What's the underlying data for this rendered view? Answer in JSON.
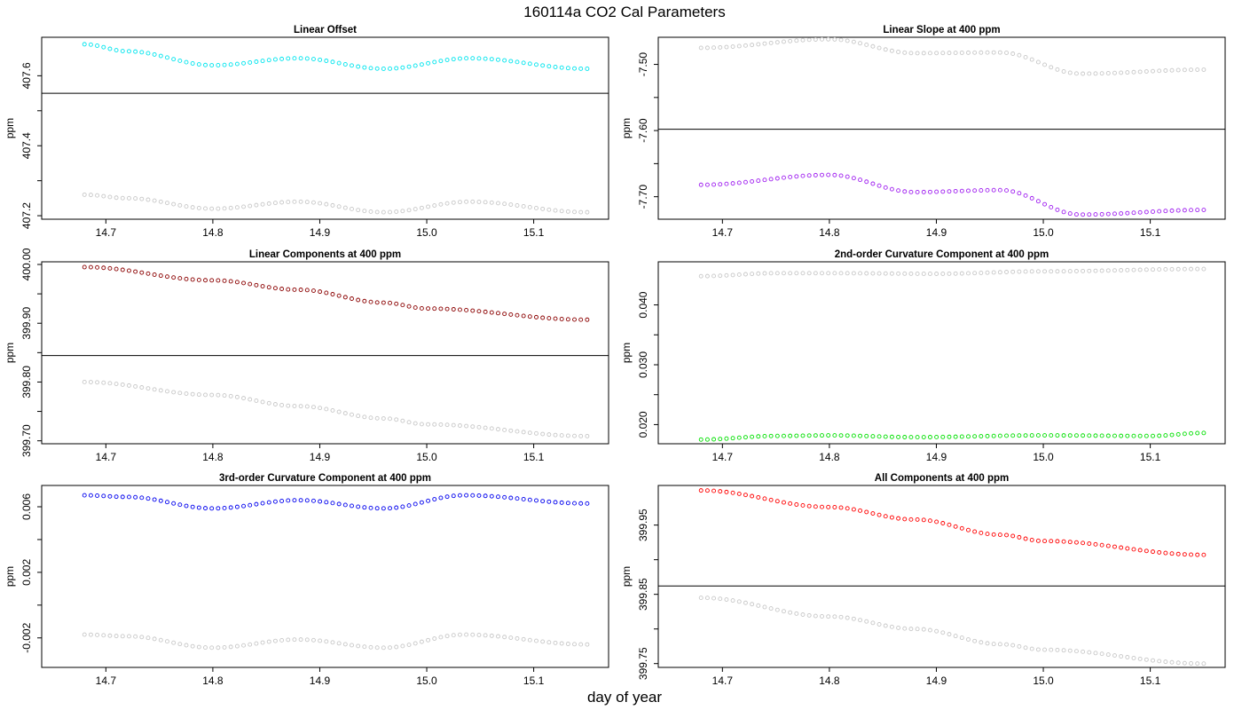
{
  "title": "160114a   CO2 Cal Parameters",
  "xlabel": "day of year",
  "colors": {
    "background": "#ffffff",
    "reference_series": "#c8c8c8",
    "axes": "#000000"
  },
  "chart_data": [
    {
      "type": "scatter",
      "title": "Linear Offset",
      "ylabel": "ppm",
      "xlim": [
        14.64,
        15.17
      ],
      "ylim": [
        407.19,
        407.71
      ],
      "xticks": [
        14.7,
        14.8,
        14.9,
        15.0,
        15.1
      ],
      "xtick_labels": [
        "14.7",
        "14.8",
        "14.9",
        "15.0",
        "15.1"
      ],
      "yticks": [
        407.2,
        407.3,
        407.4,
        407.5,
        407.6
      ],
      "ytick_labels": [
        "407.2",
        "",
        "407.4",
        "",
        "407.6"
      ],
      "hline": 407.55,
      "series": [
        {
          "color": "#00e5ee",
          "x_start": 14.68,
          "x_end": 15.15,
          "y_knots": [
            [
              14.68,
              407.69
            ],
            [
              14.72,
              407.67
            ],
            [
              14.8,
              407.63
            ],
            [
              14.88,
              407.65
            ],
            [
              14.96,
              407.62
            ],
            [
              15.04,
              407.65
            ],
            [
              15.15,
              407.62
            ]
          ]
        },
        {
          "color": "#c8c8c8",
          "x_start": 14.68,
          "x_end": 15.15,
          "y_knots": [
            [
              14.68,
              407.26
            ],
            [
              14.72,
              407.25
            ],
            [
              14.8,
              407.22
            ],
            [
              14.88,
              407.24
            ],
            [
              14.96,
              407.21
            ],
            [
              15.04,
              407.24
            ],
            [
              15.15,
              407.21
            ]
          ]
        }
      ]
    },
    {
      "type": "scatter",
      "title": "Linear Slope at 400 ppm",
      "ylabel": "ppm",
      "xlim": [
        14.64,
        15.17
      ],
      "ylim": [
        -7.734,
        -7.459
      ],
      "xticks": [
        14.7,
        14.8,
        14.9,
        15.0,
        15.1
      ],
      "xtick_labels": [
        "14.7",
        "14.8",
        "14.9",
        "15.0",
        "15.1"
      ],
      "yticks": [
        -7.7,
        -7.65,
        -7.6,
        -7.55,
        -7.5
      ],
      "ytick_labels": [
        "-7.70",
        "",
        "-7.60",
        "",
        "-7.50"
      ],
      "hline": -7.598,
      "series": [
        {
          "color": "#c8c8c8",
          "x_start": 14.68,
          "x_end": 15.15,
          "y_knots": [
            [
              14.68,
              -7.475
            ],
            [
              14.8,
              -7.462
            ],
            [
              14.88,
              -7.483
            ],
            [
              14.96,
              -7.482
            ],
            [
              15.035,
              -7.514
            ],
            [
              15.15,
              -7.508
            ]
          ]
        },
        {
          "color": "#a020f0",
          "x_start": 14.68,
          "x_end": 15.15,
          "y_knots": [
            [
              14.68,
              -7.682
            ],
            [
              14.8,
              -7.667
            ],
            [
              14.88,
              -7.693
            ],
            [
              14.96,
              -7.69
            ],
            [
              15.035,
              -7.727
            ],
            [
              15.15,
              -7.72
            ]
          ]
        }
      ]
    },
    {
      "type": "scatter",
      "title": "Linear Components at 400 ppm",
      "ylabel": "ppm",
      "xlim": [
        14.64,
        15.17
      ],
      "ylim": [
        399.695,
        400.0045
      ],
      "xticks": [
        14.7,
        14.8,
        14.9,
        15.0,
        15.1
      ],
      "xtick_labels": [
        "14.7",
        "14.8",
        "14.9",
        "15.0",
        "15.1"
      ],
      "yticks": [
        399.7,
        399.75,
        399.8,
        399.85,
        399.9,
        399.95,
        400.0
      ],
      "ytick_labels": [
        "399.70",
        "",
        "399.80",
        "",
        "399.90",
        "",
        "400.00"
      ],
      "hline": 399.845,
      "series": [
        {
          "color": "#8b0000",
          "x_start": 14.68,
          "x_end": 15.15,
          "y_knots": [
            [
              14.68,
              399.9955
            ],
            [
              14.8,
              399.973
            ],
            [
              14.88,
              399.957
            ],
            [
              14.96,
              399.935
            ],
            [
              15.0,
              399.925
            ],
            [
              15.15,
              399.906
            ]
          ]
        },
        {
          "color": "#c8c8c8",
          "x_start": 14.68,
          "x_end": 15.15,
          "y_knots": [
            [
              14.68,
              399.8
            ],
            [
              14.8,
              399.778
            ],
            [
              14.88,
              399.759
            ],
            [
              14.96,
              399.738
            ],
            [
              15.0,
              399.728
            ],
            [
              15.15,
              399.708
            ]
          ]
        }
      ]
    },
    {
      "type": "scatter",
      "title": "2nd-order Curvature Component at 400 ppm",
      "ylabel": "ppm",
      "xlim": [
        14.64,
        15.17
      ],
      "ylim": [
        0.0168,
        0.0472
      ],
      "xticks": [
        14.7,
        14.8,
        14.9,
        15.0,
        15.1
      ],
      "xtick_labels": [
        "14.7",
        "14.8",
        "14.9",
        "15.0",
        "15.1"
      ],
      "yticks": [
        0.02,
        0.025,
        0.03,
        0.035,
        0.04
      ],
      "ytick_labels": [
        "0.020",
        "",
        "0.030",
        "",
        "0.040"
      ],
      "hline": null,
      "series": [
        {
          "color": "#c8c8c8",
          "x_start": 14.68,
          "x_end": 15.15,
          "y_knots": [
            [
              14.68,
              0.0448
            ],
            [
              14.75,
              0.0453
            ],
            [
              14.8,
              0.0453
            ],
            [
              14.9,
              0.0452
            ],
            [
              15.0,
              0.0456
            ],
            [
              15.15,
              0.046
            ]
          ]
        },
        {
          "color": "#00e000",
          "x_start": 14.68,
          "x_end": 15.15,
          "y_knots": [
            [
              14.68,
              0.0175
            ],
            [
              14.75,
              0.0181
            ],
            [
              14.8,
              0.0182
            ],
            [
              14.88,
              0.0179
            ],
            [
              15.0,
              0.0182
            ],
            [
              15.1,
              0.0181
            ],
            [
              15.15,
              0.0186
            ]
          ]
        }
      ]
    },
    {
      "type": "scatter",
      "title": "3rd-order Curvature Component at 400 ppm",
      "ylabel": "ppm",
      "xlim": [
        14.64,
        15.17
      ],
      "ylim": [
        -0.0038,
        0.0073
      ],
      "xticks": [
        14.7,
        14.8,
        14.9,
        15.0,
        15.1
      ],
      "xtick_labels": [
        "14.7",
        "14.8",
        "14.9",
        "15.0",
        "15.1"
      ],
      "yticks": [
        -0.002,
        0.0,
        0.002,
        0.004,
        0.006
      ],
      "ytick_labels": [
        "-0.002",
        "",
        "0.002",
        "",
        "0.006"
      ],
      "hline": null,
      "series": [
        {
          "color": "#0000ee",
          "x_start": 14.68,
          "x_end": 15.15,
          "y_knots": [
            [
              14.68,
              0.0067
            ],
            [
              14.72,
              0.0066
            ],
            [
              14.8,
              0.0059
            ],
            [
              14.88,
              0.0064
            ],
            [
              14.96,
              0.0059
            ],
            [
              15.035,
              0.0067
            ],
            [
              15.15,
              0.0062
            ]
          ]
        },
        {
          "color": "#c8c8c8",
          "x_start": 14.68,
          "x_end": 15.15,
          "y_knots": [
            [
              14.68,
              -0.0018
            ],
            [
              14.72,
              -0.0019
            ],
            [
              14.8,
              -0.0026
            ],
            [
              14.88,
              -0.0021
            ],
            [
              14.96,
              -0.0026
            ],
            [
              15.035,
              -0.0018
            ],
            [
              15.15,
              -0.0024
            ]
          ]
        }
      ]
    },
    {
      "type": "scatter",
      "title": "All Components at 400 ppm",
      "ylabel": "ppm",
      "xlim": [
        14.64,
        15.17
      ],
      "ylim": [
        399.7445,
        400.0072
      ],
      "xticks": [
        14.7,
        14.8,
        14.9,
        15.0,
        15.1
      ],
      "xtick_labels": [
        "14.7",
        "14.8",
        "14.9",
        "15.0",
        "15.1"
      ],
      "yticks": [
        399.75,
        399.8,
        399.85,
        399.9,
        399.95
      ],
      "ytick_labels": [
        "399.75",
        "",
        "399.85",
        "",
        "399.95"
      ],
      "hline": 399.862,
      "series": [
        {
          "color": "#ff0000",
          "x_start": 14.68,
          "x_end": 15.15,
          "y_knots": [
            [
              14.68,
              400.0
            ],
            [
              14.8,
              399.976
            ],
            [
              14.88,
              399.958
            ],
            [
              14.96,
              399.936
            ],
            [
              15.0,
              399.927
            ],
            [
              15.15,
              399.907
            ]
          ]
        },
        {
          "color": "#c8c8c8",
          "x_start": 14.68,
          "x_end": 15.15,
          "y_knots": [
            [
              14.68,
              399.845
            ],
            [
              14.8,
              399.818
            ],
            [
              14.88,
              399.8
            ],
            [
              14.96,
              399.778
            ],
            [
              15.0,
              399.77
            ],
            [
              15.15,
              399.75
            ]
          ]
        }
      ]
    }
  ]
}
